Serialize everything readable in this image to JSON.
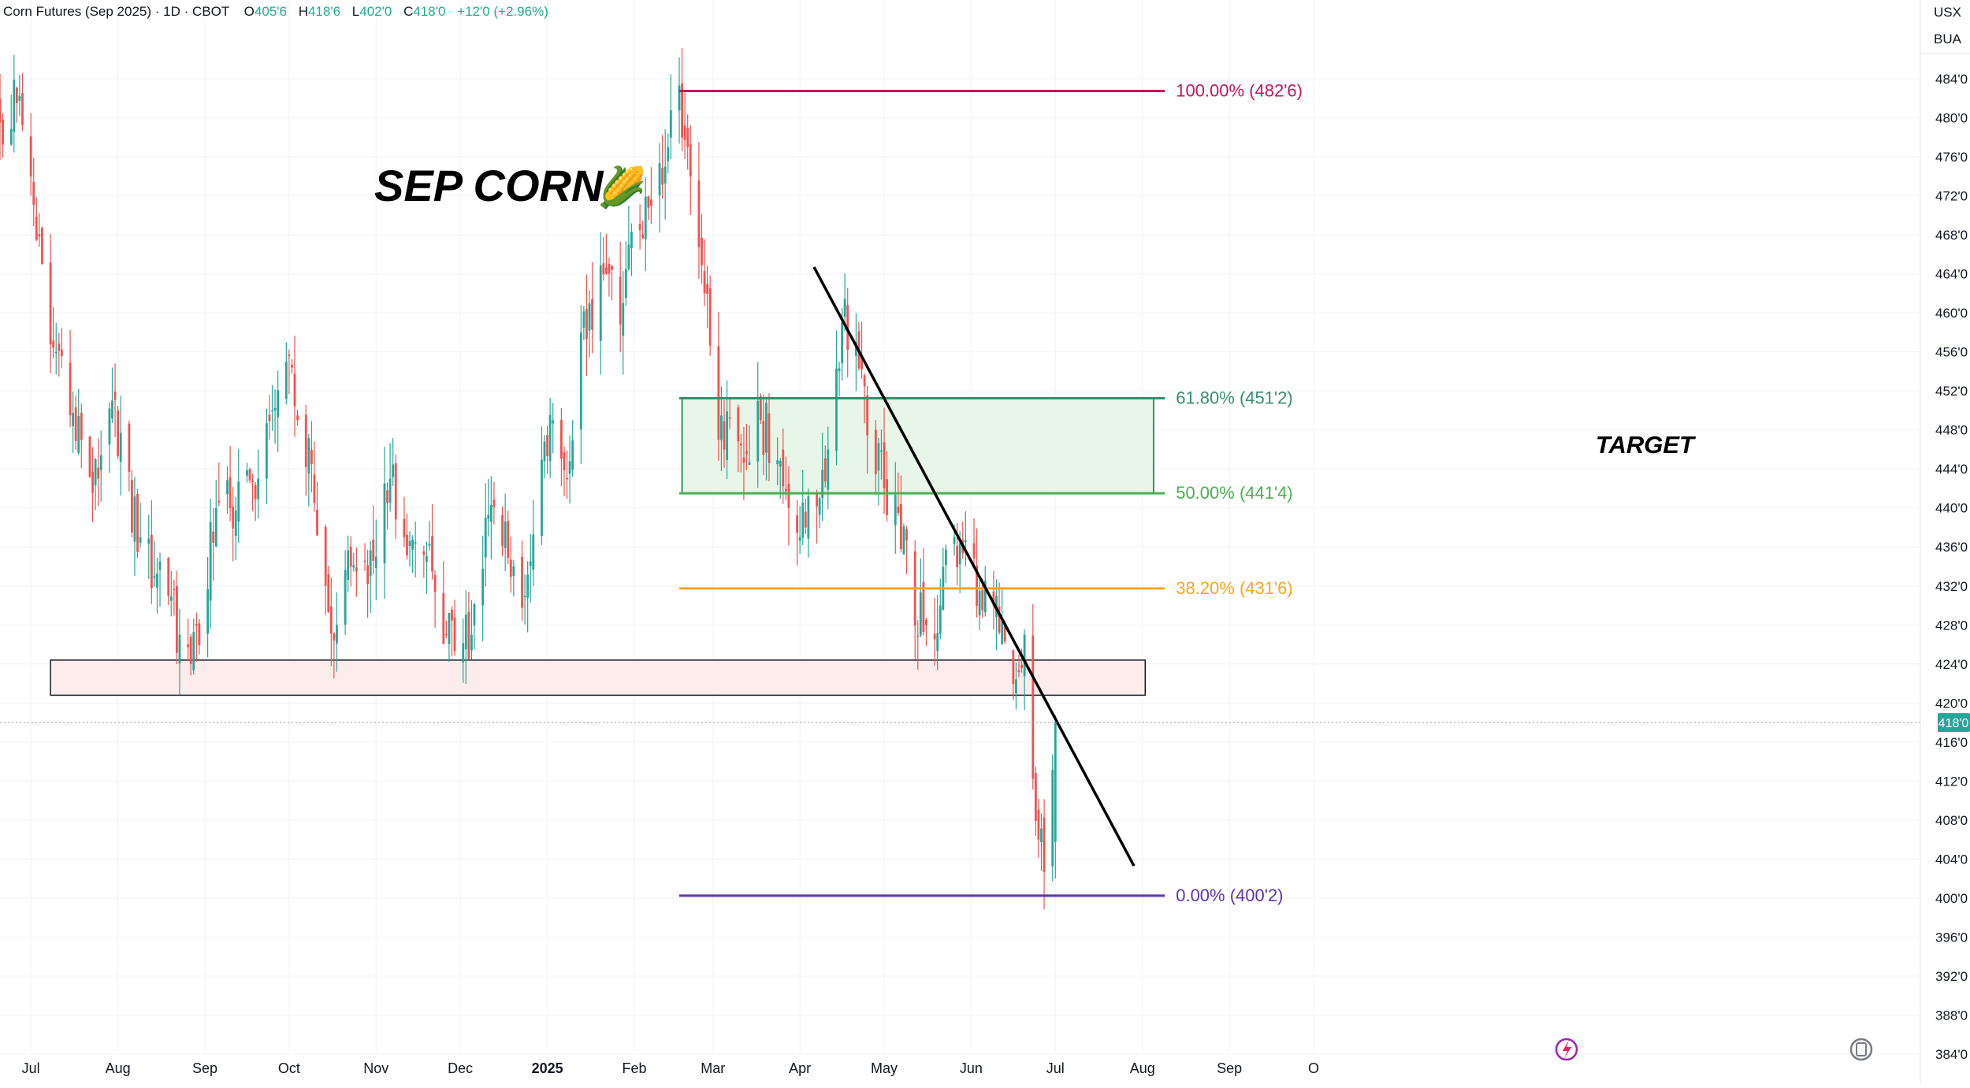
{
  "header": {
    "symbol_title": "Corn Futures (Sep 2025) · 1D · CBOT",
    "o_label": "O",
    "o_value": "405'6",
    "h_label": "H",
    "h_value": "418'6",
    "l_label": "L",
    "l_value": "402'0",
    "c_label": "C",
    "c_value": "418'0",
    "change": "+12'0 (+2.96%)"
  },
  "units": {
    "currency": "USX",
    "unit": "BUA"
  },
  "annotations": {
    "headline": "SEP CORN",
    "headline_emoji": "🌽",
    "target_label": "TARGET"
  },
  "price_tag": "418'0",
  "icons": {
    "lightning": "lightning-icon",
    "replay": "replay-icon"
  },
  "colors": {
    "up": "#26a69a",
    "down": "#ef5350",
    "fib_100": "#c2185b",
    "fib_618": "#388e6c",
    "fib_500": "#4caf50",
    "fib_382": "#f5a623",
    "fib_000": "#5e35b1",
    "target_fill": "#e8f5e9",
    "support_fill": "#fdecec",
    "price_tag_bg": "#26a69a"
  },
  "chart_data": {
    "type": "candlestick",
    "symbol": "Corn Futures (Sep 2025)",
    "interval": "1D",
    "exchange": "CBOT",
    "y_axis": {
      "ticks": [
        "384'0",
        "388'0",
        "392'0",
        "396'0",
        "400'0",
        "404'0",
        "408'0",
        "412'0",
        "416'0",
        "420'0",
        "424'0",
        "428'0",
        "432'0",
        "436'0",
        "440'0",
        "444'0",
        "448'0",
        "452'0",
        "456'0",
        "460'0",
        "464'0",
        "468'0",
        "472'0",
        "476'0",
        "480'0",
        "484'0"
      ],
      "ylim": [
        383,
        488
      ]
    },
    "x_axis": {
      "ticks": [
        "Jul",
        "Aug",
        "Sep",
        "Oct",
        "Nov",
        "Dec",
        "2025",
        "Feb",
        "Mar",
        "Apr",
        "May",
        "Jun",
        "Jul",
        "Aug",
        "Sep",
        "O"
      ],
      "range": [
        "2024-06-20",
        "2025-10-03"
      ]
    },
    "fib_levels": [
      {
        "label": "100.00% (482'6)",
        "value": 482.75,
        "color_key": "fib_100"
      },
      {
        "label": "61.80% (451'2)",
        "value": 451.25,
        "color_key": "fib_618"
      },
      {
        "label": "50.00% (441'4)",
        "value": 441.5,
        "color_key": "fib_500"
      },
      {
        "label": "38.20% (431'6)",
        "value": 431.75,
        "color_key": "fib_382"
      },
      {
        "label": "0.00% (400'2)",
        "value": 400.25,
        "color_key": "fib_000"
      }
    ],
    "target_zone": {
      "label": "TARGET",
      "from": 441.5,
      "to": 451.25,
      "start": "2025-02-18",
      "end": "2025-08-05"
    },
    "support_zone": {
      "from": 420.8,
      "to": 424.4,
      "start": "2024-07-08",
      "end": "2025-08-02"
    },
    "trendline": {
      "start": {
        "date": "2025-04-06",
        "price": 464.7
      },
      "end": {
        "date": "2025-07-29",
        "price": 403.3
      }
    },
    "last_price": 418.0,
    "closes": [
      {
        "date": "2024-06-20",
        "close": 479.5
      },
      {
        "date": "2024-06-26",
        "close": 481.5
      },
      {
        "date": "2024-07-01",
        "close": 474.0
      },
      {
        "date": "2024-07-05",
        "close": 465.0
      },
      {
        "date": "2024-07-10",
        "close": 456.0
      },
      {
        "date": "2024-07-15",
        "close": 449.5
      },
      {
        "date": "2024-07-20",
        "close": 446.0
      },
      {
        "date": "2024-07-25",
        "close": 443.0
      },
      {
        "date": "2024-07-30",
        "close": 451.0
      },
      {
        "date": "2024-08-04",
        "close": 442.0
      },
      {
        "date": "2024-08-09",
        "close": 437.0
      },
      {
        "date": "2024-08-14",
        "close": 433.0
      },
      {
        "date": "2024-08-19",
        "close": 431.0
      },
      {
        "date": "2024-08-23",
        "close": 427.0
      },
      {
        "date": "2024-08-27",
        "close": 424.0
      },
      {
        "date": "2024-08-31",
        "close": 430.0
      },
      {
        "date": "2024-09-05",
        "close": 440.0
      },
      {
        "date": "2024-09-10",
        "close": 440.0
      },
      {
        "date": "2024-09-15",
        "close": 441.5
      },
      {
        "date": "2024-09-20",
        "close": 443.0
      },
      {
        "date": "2024-09-25",
        "close": 450.0
      },
      {
        "date": "2024-09-30",
        "close": 455.0
      },
      {
        "date": "2024-10-04",
        "close": 449.0
      },
      {
        "date": "2024-10-09",
        "close": 444.5
      },
      {
        "date": "2024-10-14",
        "close": 432.0
      },
      {
        "date": "2024-10-18",
        "close": 428.0
      },
      {
        "date": "2024-10-23",
        "close": 434.0
      },
      {
        "date": "2024-10-28",
        "close": 434.5
      },
      {
        "date": "2024-11-01",
        "close": 435.0
      },
      {
        "date": "2024-11-06",
        "close": 443.0
      },
      {
        "date": "2024-11-11",
        "close": 437.0
      },
      {
        "date": "2024-11-16",
        "close": 436.0
      },
      {
        "date": "2024-11-21",
        "close": 433.5
      },
      {
        "date": "2024-11-26",
        "close": 427.0
      },
      {
        "date": "2024-11-30",
        "close": 426.0
      },
      {
        "date": "2024-12-05",
        "close": 427.0
      },
      {
        "date": "2024-12-10",
        "close": 439.0
      },
      {
        "date": "2024-12-15",
        "close": 437.0
      },
      {
        "date": "2024-12-20",
        "close": 434.0
      },
      {
        "date": "2024-12-24",
        "close": 431.0
      },
      {
        "date": "2024-12-29",
        "close": 441.0
      },
      {
        "date": "2025-01-03",
        "close": 449.0
      },
      {
        "date": "2025-01-08",
        "close": 443.0
      },
      {
        "date": "2025-01-13",
        "close": 458.0
      },
      {
        "date": "2025-01-18",
        "close": 461.0
      },
      {
        "date": "2025-01-23",
        "close": 464.0
      },
      {
        "date": "2025-01-28",
        "close": 461.0
      },
      {
        "date": "2025-02-02",
        "close": 470.0
      },
      {
        "date": "2025-02-07",
        "close": 471.0
      },
      {
        "date": "2025-02-12",
        "close": 475.0
      },
      {
        "date": "2025-02-16",
        "close": 482.5
      },
      {
        "date": "2025-02-21",
        "close": 474.0
      },
      {
        "date": "2025-02-26",
        "close": 462.0
      },
      {
        "date": "2025-03-03",
        "close": 447.0
      },
      {
        "date": "2025-03-08",
        "close": 448.0
      },
      {
        "date": "2025-03-13",
        "close": 445.5
      },
      {
        "date": "2025-03-18",
        "close": 449.0
      },
      {
        "date": "2025-03-23",
        "close": 446.0
      },
      {
        "date": "2025-03-28",
        "close": 440.0
      },
      {
        "date": "2025-04-01",
        "close": 437.0
      },
      {
        "date": "2025-04-06",
        "close": 441.0
      },
      {
        "date": "2025-04-11",
        "close": 446.0
      },
      {
        "date": "2025-04-16",
        "close": 459.0
      },
      {
        "date": "2025-04-21",
        "close": 457.0
      },
      {
        "date": "2025-04-26",
        "close": 447.0
      },
      {
        "date": "2025-05-01",
        "close": 442.0
      },
      {
        "date": "2025-05-06",
        "close": 439.5
      },
      {
        "date": "2025-05-11",
        "close": 431.0
      },
      {
        "date": "2025-05-16",
        "close": 428.0
      },
      {
        "date": "2025-05-21",
        "close": 430.0
      },
      {
        "date": "2025-05-26",
        "close": 437.0
      },
      {
        "date": "2025-05-31",
        "close": 436.0
      },
      {
        "date": "2025-06-05",
        "close": 429.5
      },
      {
        "date": "2025-06-10",
        "close": 431.0
      },
      {
        "date": "2025-06-15",
        "close": 424.0
      },
      {
        "date": "2025-06-20",
        "close": 427.0
      },
      {
        "date": "2025-06-25",
        "close": 406.0
      },
      {
        "date": "2025-06-28",
        "close": 404.0
      },
      {
        "date": "2025-07-01",
        "close": 418.0
      }
    ]
  }
}
